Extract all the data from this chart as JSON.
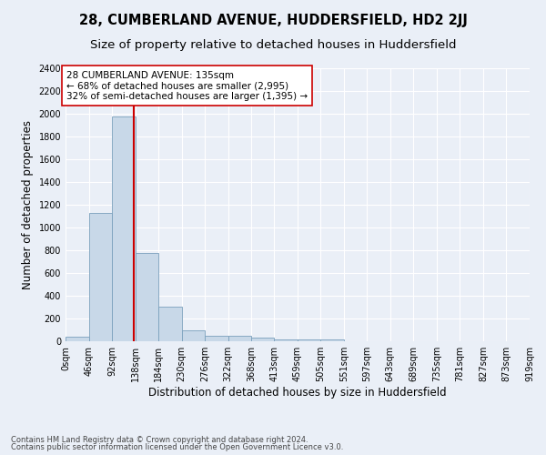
{
  "title": "28, CUMBERLAND AVENUE, HUDDERSFIELD, HD2 2JJ",
  "subtitle": "Size of property relative to detached houses in Huddersfield",
  "xlabel": "Distribution of detached houses by size in Huddersfield",
  "ylabel": "Number of detached properties",
  "footnote1": "Contains HM Land Registry data © Crown copyright and database right 2024.",
  "footnote2": "Contains public sector information licensed under the Open Government Licence v3.0.",
  "bar_edges": [
    0,
    46,
    92,
    138,
    184,
    230,
    276,
    322,
    368,
    413,
    459,
    505,
    551,
    597,
    643,
    689,
    735,
    781,
    827,
    873,
    919
  ],
  "bar_heights": [
    40,
    1130,
    1980,
    775,
    305,
    100,
    50,
    45,
    35,
    20,
    20,
    20,
    0,
    0,
    0,
    0,
    0,
    0,
    0,
    0
  ],
  "bar_color": "#c8d8e8",
  "bar_edgecolor": "#7aa0bc",
  "property_size": 135,
  "vline_color": "#cc0000",
  "annotation_text": "28 CUMBERLAND AVENUE: 135sqm\n← 68% of detached houses are smaller (2,995)\n32% of semi-detached houses are larger (1,395) →",
  "annotation_box_edgecolor": "#cc0000",
  "annotation_box_facecolor": "#ffffff",
  "ylim": [
    0,
    2400
  ],
  "yticks": [
    0,
    200,
    400,
    600,
    800,
    1000,
    1200,
    1400,
    1600,
    1800,
    2000,
    2200,
    2400
  ],
  "tick_labels": [
    "0sqm",
    "46sqm",
    "92sqm",
    "138sqm",
    "184sqm",
    "230sqm",
    "276sqm",
    "322sqm",
    "368sqm",
    "413sqm",
    "459sqm",
    "505sqm",
    "551sqm",
    "597sqm",
    "643sqm",
    "689sqm",
    "735sqm",
    "781sqm",
    "827sqm",
    "873sqm",
    "919sqm"
  ],
  "background_color": "#eaeff7",
  "plot_background_color": "#eaeff7",
  "grid_color": "#ffffff",
  "title_fontsize": 10.5,
  "subtitle_fontsize": 9.5,
  "label_fontsize": 8.5,
  "tick_fontsize": 7,
  "annotation_fontsize": 7.5,
  "footnote_fontsize": 6
}
